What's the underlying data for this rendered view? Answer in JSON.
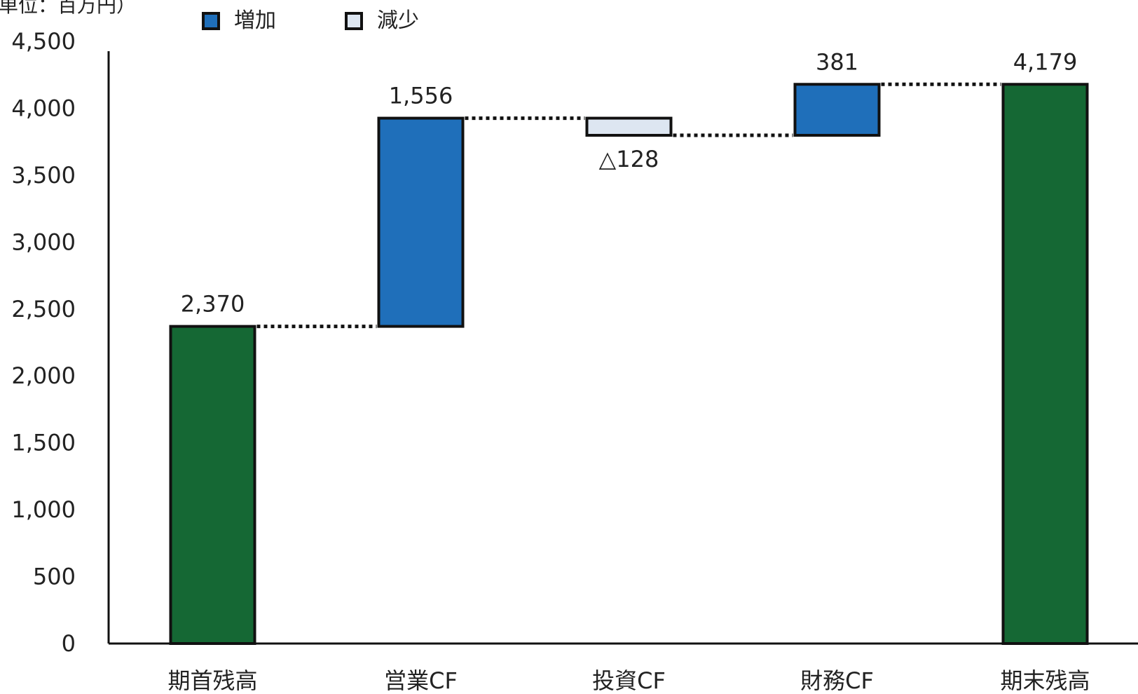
{
  "chart_data": {
    "type": "waterfall",
    "unit_label": "（単位：百万円）",
    "ylim": [
      0,
      4500
    ],
    "y_ticks": [
      0,
      500,
      1000,
      1500,
      2000,
      2500,
      3000,
      3500,
      4000,
      4500
    ],
    "y_tick_labels": [
      "0",
      "500",
      "1,000",
      "1,500",
      "2,000",
      "2,500",
      "3,000",
      "3,500",
      "4,000",
      "4,500"
    ],
    "grid": false,
    "legend_position": "top",
    "legend": [
      {
        "label": "増加",
        "color": "#1f6fba"
      },
      {
        "label": "減少",
        "color": "#dde6f1"
      }
    ],
    "categories": [
      "期首残高",
      "営業CF",
      "投資CF",
      "財務CF",
      "期末残高"
    ],
    "bars": [
      {
        "category": "期首残高",
        "kind": "total",
        "start": 0,
        "end": 2370,
        "label": "2,370"
      },
      {
        "category": "営業CF",
        "kind": "increase",
        "start": 2370,
        "end": 3926,
        "label": "1,556"
      },
      {
        "category": "投資CF",
        "kind": "decrease",
        "start": 3926,
        "end": 3798,
        "label": "△128"
      },
      {
        "category": "財務CF",
        "kind": "increase",
        "start": 3798,
        "end": 4179,
        "label": "381"
      },
      {
        "category": "期末残高",
        "kind": "total",
        "start": 0,
        "end": 4179,
        "label": "4,179"
      }
    ],
    "colors": {
      "total": "#156834",
      "increase": "#1f6fba",
      "decrease": "#dde6f1",
      "outline": "#111111"
    }
  }
}
